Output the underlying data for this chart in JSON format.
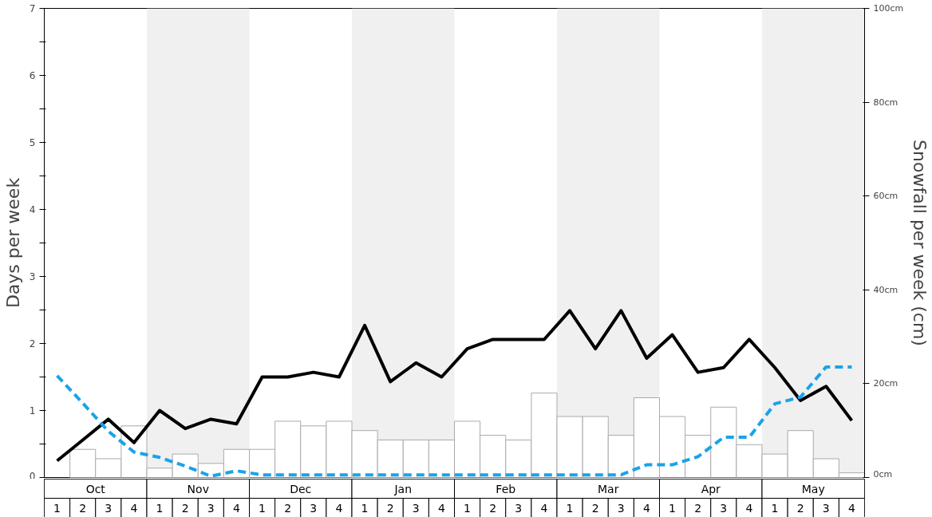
{
  "chart_data": {
    "type": "bar",
    "ylabel": "Days per week",
    "y2label": "Snowfall per week (cm)",
    "grid": false,
    "categories": [
      "1",
      "2",
      "3",
      "4",
      "1",
      "2",
      "3",
      "4",
      "1",
      "2",
      "3",
      "4",
      "1",
      "2",
      "3",
      "4",
      "1",
      "2",
      "3",
      "4",
      "1",
      "2",
      "3",
      "4",
      "1",
      "2",
      "3",
      "4",
      "1",
      "2",
      "3",
      "4"
    ],
    "annotations": [
      "Oct",
      "Nov",
      "Dec",
      "Jan",
      "Feb",
      "Mar",
      "Apr",
      "May"
    ],
    "ylim": [
      0,
      7
    ],
    "yticks": [
      0,
      {
        "value": 0.5,
        "label": null
      },
      1,
      {
        "value": 1.5,
        "label": null
      },
      2,
      {
        "value": 2.5,
        "label": null
      },
      3,
      {
        "value": 3.5,
        "label": null
      },
      4,
      {
        "value": 4.5,
        "label": null
      },
      5,
      {
        "value": 5.5,
        "label": null
      },
      6,
      {
        "value": 6.5,
        "label": null
      },
      7
    ],
    "y2lim": [
      0,
      100
    ],
    "y2ticks": [
      {
        "value": 0,
        "label": "0cm"
      },
      {
        "value": 20,
        "label": "20cm"
      },
      {
        "value": 40,
        "label": "40cm"
      },
      {
        "value": 60,
        "label": "60cm"
      },
      {
        "value": 80,
        "label": "80cm"
      },
      {
        "value": 100,
        "label": "100cm"
      }
    ],
    "series": [
      {
        "axis": "y2",
        "color": "#ffffff",
        "values": [
          0,
          6,
          4,
          11,
          2,
          5,
          3,
          6,
          6,
          12,
          11,
          12,
          10,
          8,
          8,
          8,
          12,
          9,
          8,
          18,
          13,
          13,
          9,
          17,
          13,
          9,
          15,
          7,
          5,
          10,
          4,
          1
        ]
      },
      {
        "type": "line",
        "color": "#000000",
        "line_style": "solid",
        "values": [
          0.25,
          0.56,
          0.87,
          0.52,
          1.0,
          0.73,
          0.87,
          0.8,
          1.5,
          1.5,
          1.57,
          1.5,
          2.27,
          1.43,
          1.71,
          1.5,
          1.92,
          2.06,
          2.06,
          2.06,
          2.49,
          1.92,
          2.49,
          1.78,
          2.13,
          1.57,
          1.64,
          2.06,
          1.64,
          1.15,
          1.36,
          0.85
        ]
      },
      {
        "type": "line",
        "color": "#1aa3e8",
        "line_style": "dashed",
        "values": [
          1.52,
          1.11,
          0.69,
          0.38,
          0.3,
          0.17,
          0.02,
          0.1,
          0.04,
          0.04,
          0.04,
          0.04,
          0.04,
          0.04,
          0.04,
          0.04,
          0.04,
          0.04,
          0.04,
          0.04,
          0.04,
          0.04,
          0.04,
          0.19,
          0.19,
          0.31,
          0.6,
          0.6,
          1.1,
          1.2,
          1.65,
          1.65
        ]
      }
    ]
  }
}
